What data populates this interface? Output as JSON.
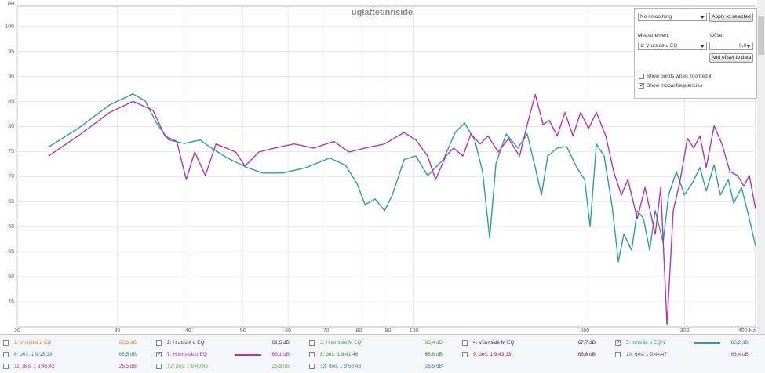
{
  "chart_data": {
    "type": "line",
    "title": "uglattetinnside",
    "y_label": "dB",
    "log_x": true,
    "grid": true,
    "xlim": [
      20,
      400
    ],
    "ylim": [
      40,
      104
    ],
    "xticks": [
      20,
      30,
      40,
      50,
      60,
      70,
      80,
      90,
      100,
      200,
      300,
      {
        "value": 400,
        "label": "400 Hz"
      }
    ],
    "yticks": [
      45,
      50,
      55,
      60,
      65,
      70,
      75,
      80,
      85,
      90,
      95,
      100
    ],
    "series": [
      {
        "color": "#2e9c9c",
        "x": [
          22.7,
          25.6,
          29.1,
          32.0,
          33.6,
          35.3,
          37.0,
          39.4,
          42.0,
          44.0,
          46.9,
          50.8,
          54.2,
          58.7,
          64.6,
          71.0,
          75.7,
          79.4,
          82.0,
          85.4,
          88.8,
          91.6,
          96.1,
          100.8,
          105.7,
          112.7,
          118.2,
          122.8,
          128.0,
          132.1,
          136.0,
          139.5,
          145.4,
          152.5,
          158.4,
          163.6,
          167.8,
          172.1,
          178.8,
          185.8,
          193.6,
          199.9,
          204.4,
          209.7,
          216.4,
          223.5,
          229.2,
          234.4,
          242.0,
          247.5,
          253.8,
          260.3,
          266.2,
          274.8,
          281.0,
          290.1,
          299.5,
          309.2,
          319.2,
          327.4,
          338.0,
          346.7,
          358.0,
          366.0,
          377.8,
          390.0,
          400
        ],
        "values": [
          75.9,
          79.6,
          84.3,
          86.5,
          85.1,
          80.4,
          77.3,
          76.6,
          77.3,
          75.7,
          73.7,
          71.8,
          70.7,
          70.7,
          71.8,
          73.7,
          72.3,
          68.6,
          64.4,
          65.5,
          63.2,
          66.3,
          73.4,
          74.1,
          70.2,
          73.4,
          78.8,
          80.7,
          77.3,
          71.0,
          57.7,
          72.6,
          78.5,
          75.7,
          78.5,
          71.8,
          66.3,
          74.1,
          75.7,
          76.0,
          71.8,
          69.4,
          60.0,
          76.5,
          74.1,
          64.0,
          53.0,
          58.5,
          55.3,
          63.2,
          61.6,
          55.3,
          63.2,
          56.9,
          66.3,
          71.0,
          66.3,
          68.6,
          71.8,
          67.1,
          72.3,
          66.3,
          69.4,
          64.7,
          67.8,
          61.6,
          56.1
        ]
      },
      {
        "color": "#b233b5",
        "x": [
          22.7,
          25.6,
          29.1,
          32.0,
          34.7,
          36.4,
          38.2,
          39.7,
          41.1,
          42.9,
          44.8,
          48.5,
          50.4,
          53.3,
          56.8,
          61.5,
          66.6,
          72.2,
          76.9,
          82.0,
          88.8,
          96.1,
          100.8,
          105.7,
          109.2,
          113.8,
          117.5,
          122.0,
          126.0,
          130.9,
          135.1,
          140.8,
          146.8,
          153.5,
          158.4,
          163.6,
          168.9,
          173.2,
          178.8,
          184.6,
          190.6,
          196.7,
          203.1,
          209.7,
          217.8,
          224.9,
          232.1,
          238.2,
          247.5,
          255.4,
          266.2,
          272.2,
          279.2,
          286.4,
          293.8,
          303.3,
          311.2,
          319.2,
          327.4,
          338.0,
          348.9,
          360.3,
          371.8,
          381.4,
          390.0,
          400
        ],
        "values": [
          74.1,
          78.1,
          82.8,
          85.0,
          83.2,
          78.1,
          77.0,
          69.4,
          74.9,
          70.2,
          76.5,
          74.9,
          72.1,
          74.9,
          75.7,
          76.5,
          75.7,
          77.0,
          74.9,
          75.7,
          76.5,
          78.8,
          77.3,
          74.1,
          69.4,
          74.1,
          75.7,
          74.1,
          78.5,
          76.5,
          78.1,
          74.9,
          77.6,
          74.1,
          80.4,
          86.4,
          80.4,
          81.2,
          78.1,
          82.8,
          78.1,
          82.8,
          79.6,
          82.8,
          78.1,
          71.0,
          66.3,
          69.4,
          61.6,
          67.8,
          58.5,
          67.8,
          40.4,
          63.2,
          68.6,
          77.6,
          75.7,
          78.1,
          71.8,
          80.1,
          76.5,
          71.0,
          70.2,
          68.1,
          70.2,
          63.5
        ]
      }
    ]
  },
  "panel": {
    "smoothing": "No smoothing",
    "apply_button": "Apply to selected",
    "measurement_label": "Measurement",
    "offset_label": "Offset",
    "measurement": "1: V utside u EQ",
    "offset": "0,0",
    "add_offset_button": "Add offset to data",
    "options": [
      {
        "label": "Show points when zoomed in",
        "checked": false
      },
      {
        "label": "Show modal frequencies",
        "checked": true
      }
    ]
  },
  "measurements": [
    {
      "label": "1: V utside u EQ",
      "level": "65,3 dB",
      "color": "#e0782f",
      "checked": false
    },
    {
      "label": "2: H utside u EQ",
      "level": "61,5 dB",
      "color": "#444444",
      "checked": false
    },
    {
      "label": "3: H innside M EQ",
      "level": "66,4 dB",
      "color": "#3aa84a",
      "checked": false
    },
    {
      "label": "4: V innside M EQ",
      "level": "67,7 dB",
      "color": "#2b2f8f",
      "checked": false
    },
    {
      "label": "5: innside u EQ  V",
      "level": "63,2 dB",
      "color": "#2e9c9c",
      "checked": true
    },
    {
      "label": "6: des. 1 9:15:29",
      "level": "66,5 dB",
      "color": "#2f8fa0",
      "checked": false
    },
    {
      "label": "7: H innside u EQ",
      "level": "69,1 dB",
      "color": "#b233b5",
      "checked": true
    },
    {
      "label": "8: des. 1 9:41:46",
      "level": "66,8 dB",
      "color": "#2f9a3c",
      "checked": false
    },
    {
      "label": "9: des. 1 9:43:33",
      "level": "66,6 dB",
      "color": "#a0282a",
      "checked": false
    },
    {
      "label": "10: des. 1 9:44:47",
      "level": "66,4 dB",
      "color": "#7a4fa8",
      "checked": false
    },
    {
      "label": "11: des. 1 9:45:42",
      "level": "26,5 dB",
      "color": "#c0389a",
      "checked": false
    },
    {
      "label": "12: des. 1 9:49:06",
      "level": "25,8 dB",
      "color": "#6cc25a",
      "checked": false
    },
    {
      "label": "13: des. 1 9:50:43",
      "level": "28,5 dB",
      "color": "#4a86b8",
      "checked": false
    }
  ]
}
